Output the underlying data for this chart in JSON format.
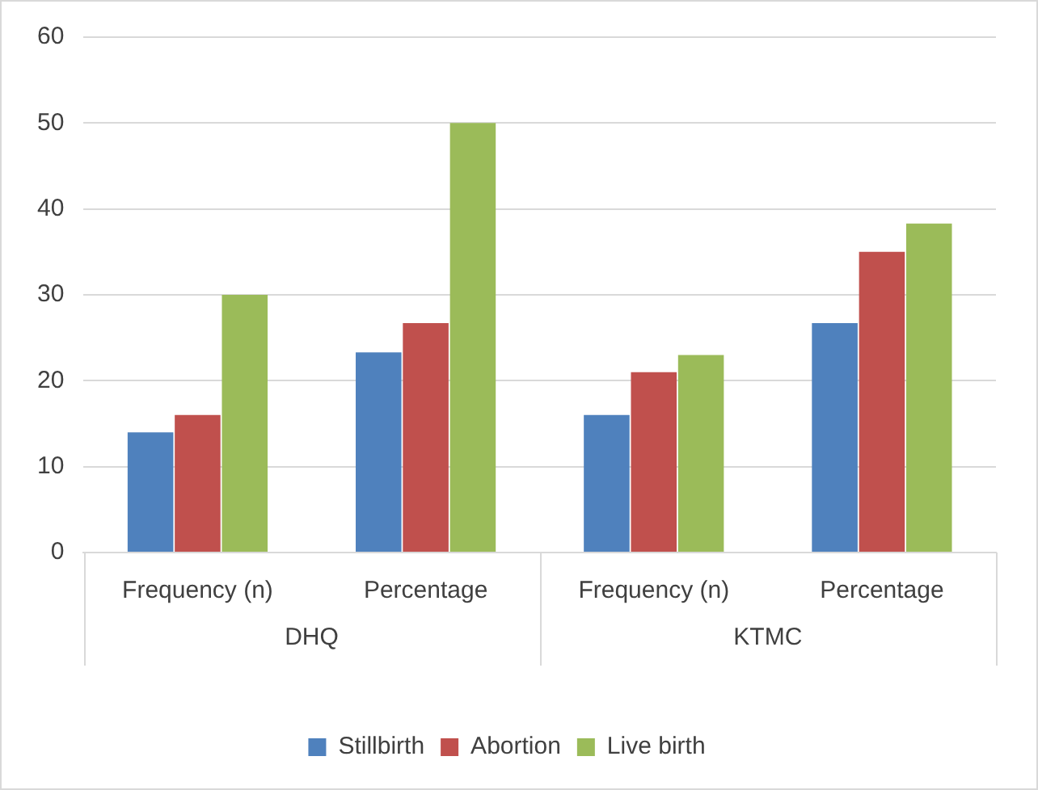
{
  "chart_data": {
    "type": "bar",
    "categories": [
      "Frequency (n)",
      "Percentage",
      "Frequency (n)",
      "Percentage"
    ],
    "series": [
      {
        "name": "Stillbirth",
        "color": "#4f81bd",
        "values": [
          14,
          23.3,
          16,
          26.7
        ]
      },
      {
        "name": "Abortion",
        "color": "#c0504d",
        "values": [
          16,
          26.7,
          21,
          35
        ]
      },
      {
        "name": "Live birth",
        "color": "#9bbb59",
        "values": [
          30,
          50,
          23,
          38.3
        ]
      }
    ],
    "annotations": [
      "DHQ",
      "KTMC"
    ],
    "ylim": [
      0,
      60
    ],
    "yticks": [
      0,
      10,
      20,
      30,
      40,
      50,
      60
    ],
    "grid": "y",
    "legend": "bottom"
  }
}
